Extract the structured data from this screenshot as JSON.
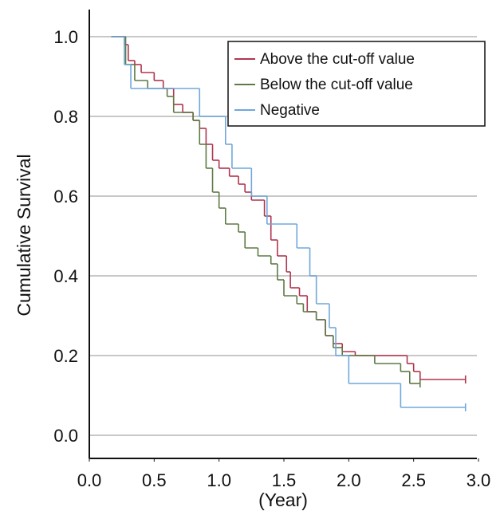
{
  "chart_data": {
    "type": "step-line",
    "x_label": "(Year)",
    "y_label": "Cumulative Survival",
    "xlim": [
      0,
      3.0
    ],
    "ylim": [
      -0.058,
      1.068
    ],
    "xticks": [
      {
        "value": 0,
        "label": "0.0"
      },
      0.5,
      {
        "value": 1,
        "label": "1.0"
      },
      1.5,
      {
        "value": 2,
        "label": "2.0"
      },
      2.5,
      {
        "value": 3,
        "label": "3.0"
      }
    ],
    "yticks": [
      {
        "value": 0,
        "label": "0.0"
      },
      0.2,
      0.4,
      0.6,
      0.8,
      {
        "value": 1,
        "label": "1.0"
      }
    ],
    "grid": true,
    "legend": "top-right",
    "series": [
      {
        "name": "Above the cut-off value",
        "color": "#b0354f",
        "x": [
          0.17,
          0.27,
          0.3,
          0.35,
          0.4,
          0.5,
          0.57,
          0.65,
          0.72,
          0.8,
          0.85,
          0.9,
          0.95,
          1.0,
          1.08,
          1.15,
          1.2,
          1.25,
          1.35,
          1.4,
          1.45,
          1.52,
          1.55,
          1.62,
          1.68,
          1.75,
          1.82,
          1.88,
          1.95,
          2.05,
          2.45,
          2.5,
          2.55,
          2.9
        ],
        "values": [
          1.0,
          0.98,
          0.94,
          0.93,
          0.91,
          0.89,
          0.87,
          0.83,
          0.81,
          0.79,
          0.77,
          0.73,
          0.69,
          0.67,
          0.65,
          0.63,
          0.61,
          0.59,
          0.55,
          0.49,
          0.45,
          0.41,
          0.37,
          0.35,
          0.31,
          0.29,
          0.25,
          0.23,
          0.21,
          0.2,
          0.18,
          0.16,
          0.14,
          0.14
        ]
      },
      {
        "name": "Below the cut-off value",
        "color": "#5f7a45",
        "x": [
          0.17,
          0.28,
          0.35,
          0.45,
          0.6,
          0.65,
          0.8,
          0.85,
          0.9,
          0.95,
          1.0,
          1.05,
          1.15,
          1.2,
          1.3,
          1.4,
          1.45,
          1.5,
          1.6,
          1.65,
          1.75,
          1.82,
          1.88,
          1.95,
          2.2,
          2.4,
          2.47,
          2.55
        ],
        "values": [
          1.0,
          0.93,
          0.89,
          0.87,
          0.85,
          0.81,
          0.79,
          0.73,
          0.67,
          0.61,
          0.57,
          0.53,
          0.51,
          0.47,
          0.45,
          0.43,
          0.39,
          0.35,
          0.33,
          0.31,
          0.29,
          0.25,
          0.22,
          0.2,
          0.18,
          0.16,
          0.13,
          0.13
        ]
      },
      {
        "name": "Negative",
        "color": "#6fa8dc",
        "x": [
          0.17,
          0.27,
          0.32,
          0.85,
          1.05,
          1.1,
          1.25,
          1.37,
          1.6,
          1.7,
          1.75,
          1.85,
          1.9,
          2.0,
          2.4,
          2.9
        ],
        "values": [
          1.0,
          0.93,
          0.87,
          0.8,
          0.73,
          0.67,
          0.6,
          0.53,
          0.47,
          0.4,
          0.33,
          0.27,
          0.2,
          0.13,
          0.07,
          0.07
        ]
      }
    ]
  }
}
